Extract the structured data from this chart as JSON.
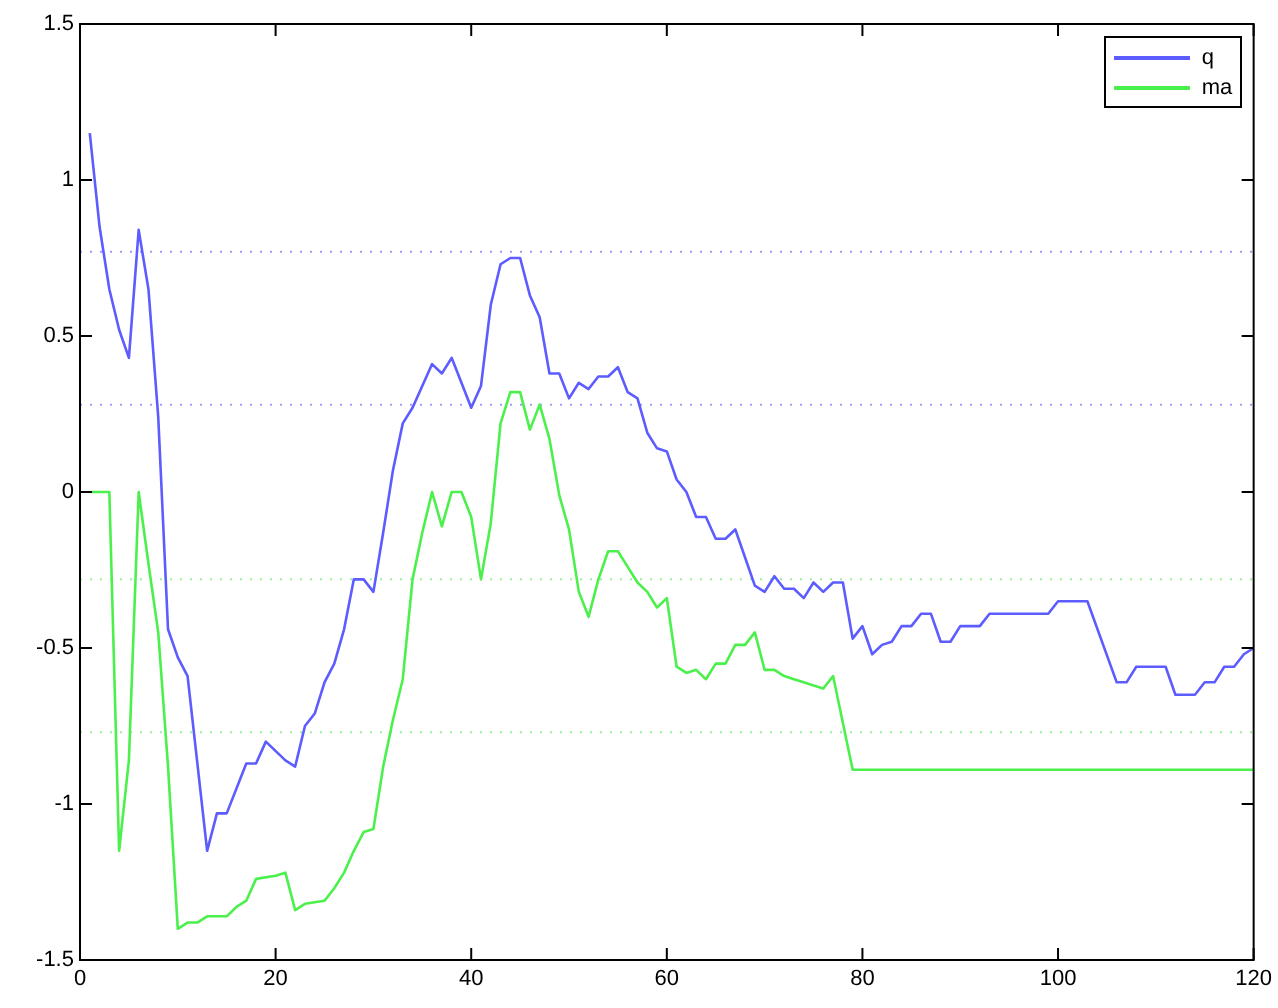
{
  "chart_data": {
    "type": "line",
    "xlim": [
      0,
      120
    ],
    "xticks": [
      0,
      20,
      40,
      60,
      80,
      100,
      120
    ],
    "ylim": [
      -1.5,
      1.5
    ],
    "yticks": [
      -1.5,
      -1,
      -0.5,
      0,
      0.5,
      1,
      1.5
    ],
    "grid": false,
    "legend": "top right",
    "marker": "none",
    "line_style": "solid",
    "series": [
      {
        "name": "q",
        "color": "#5c5cff",
        "x": [
          1,
          2,
          3,
          4,
          5,
          6,
          7,
          8,
          9,
          10,
          11,
          13,
          14,
          15,
          17,
          18,
          19,
          21,
          22,
          23,
          24,
          25,
          26,
          27,
          28,
          29,
          30,
          31,
          32,
          33,
          34,
          36,
          37,
          38,
          40,
          41,
          42,
          43,
          44,
          45,
          46,
          47,
          48,
          49,
          50,
          51,
          52,
          53,
          54,
          55,
          56,
          57,
          58,
          59,
          60,
          61,
          62,
          63,
          64,
          65,
          66,
          67,
          68,
          69,
          70,
          71,
          72,
          73,
          74,
          75,
          76,
          77,
          78,
          79,
          80,
          81,
          82,
          83,
          84,
          85,
          86,
          87,
          88,
          89,
          90,
          92,
          93,
          99,
          100,
          103,
          106,
          107,
          108,
          111,
          112,
          114,
          115,
          116,
          117,
          118,
          119,
          120
        ],
        "values": [
          1.15,
          0.85,
          0.65,
          0.52,
          0.43,
          0.84,
          0.65,
          0.24,
          -0.44,
          -0.53,
          -0.59,
          -1.15,
          -1.03,
          -1.03,
          -0.87,
          -0.87,
          -0.8,
          -0.86,
          -0.88,
          -0.75,
          -0.71,
          -0.61,
          -0.55,
          -0.44,
          -0.28,
          -0.28,
          -0.32,
          -0.13,
          0.07,
          0.22,
          0.27,
          0.41,
          0.38,
          0.43,
          0.27,
          0.34,
          0.6,
          0.73,
          0.75,
          0.75,
          0.63,
          0.56,
          0.38,
          0.38,
          0.3,
          0.35,
          0.33,
          0.37,
          0.37,
          0.4,
          0.32,
          0.3,
          0.19,
          0.14,
          0.13,
          0.04,
          0,
          -0.08,
          -0.08,
          -0.15,
          -0.15,
          -0.12,
          -0.21,
          -0.3,
          -0.32,
          -0.27,
          -0.31,
          -0.31,
          -0.34,
          -0.29,
          -0.32,
          -0.29,
          -0.29,
          -0.47,
          -0.43,
          -0.52,
          -0.49,
          -0.48,
          -0.43,
          -0.43,
          -0.39,
          -0.39,
          -0.48,
          -0.48,
          -0.43,
          -0.43,
          -0.39,
          -0.39,
          -0.35,
          -0.35,
          -0.61,
          -0.61,
          -0.56,
          -0.56,
          -0.65,
          -0.65,
          -0.61,
          -0.61,
          -0.56,
          -0.56,
          -0.52,
          -0.5
        ]
      },
      {
        "name": "ma",
        "color": "#4cf04c",
        "x": [
          1,
          3,
          4,
          5,
          6,
          7,
          8,
          9,
          10,
          11,
          12,
          13,
          15,
          16,
          17,
          18,
          20,
          21,
          22,
          23,
          25,
          26,
          27,
          28,
          29,
          30,
          31,
          32,
          33,
          34,
          35,
          36,
          37,
          38,
          39,
          40,
          41,
          42,
          43,
          44,
          45,
          46,
          47,
          48,
          49,
          50,
          51,
          52,
          53,
          54,
          55,
          56,
          57,
          58,
          59,
          60,
          61,
          62,
          63,
          64,
          65,
          66,
          67,
          68,
          69,
          70,
          71,
          72,
          73,
          74,
          75,
          76,
          77,
          79,
          120
        ],
        "values": [
          0,
          0,
          -1.15,
          -0.86,
          0,
          -0.23,
          -0.45,
          -0.88,
          -1.4,
          -1.38,
          -1.38,
          -1.36,
          -1.36,
          -1.33,
          -1.31,
          -1.24,
          -1.23,
          -1.22,
          -1.34,
          -1.32,
          -1.31,
          -1.27,
          -1.22,
          -1.15,
          -1.09,
          -1.08,
          -0.88,
          -0.73,
          -0.6,
          -0.28,
          -0.13,
          0,
          -0.11,
          0,
          0,
          -0.08,
          -0.28,
          -0.1,
          0.22,
          0.32,
          0.32,
          0.2,
          0.28,
          0.17,
          -0.01,
          -0.12,
          -0.32,
          -0.4,
          -0.28,
          -0.19,
          -0.19,
          -0.24,
          -0.29,
          -0.32,
          -0.37,
          -0.34,
          -0.56,
          -0.58,
          -0.57,
          -0.6,
          -0.55,
          -0.55,
          -0.49,
          -0.49,
          -0.45,
          -0.57,
          -0.57,
          -0.59,
          -0.6,
          -0.61,
          -0.62,
          -0.63,
          -0.59,
          -0.89,
          -0.89
        ]
      }
    ],
    "ref_lines": [
      {
        "axis": "y",
        "value": 0.77,
        "color": "#9c9cff",
        "line_style": "dotted"
      },
      {
        "axis": "y",
        "value": 0.28,
        "color": "#9c9cff",
        "line_style": "dotted"
      },
      {
        "axis": "y",
        "value": -0.28,
        "color": "#9cf09c",
        "line_style": "dotted"
      },
      {
        "axis": "y",
        "value": -0.77,
        "color": "#9cf09c",
        "line_style": "dotted"
      }
    ]
  }
}
